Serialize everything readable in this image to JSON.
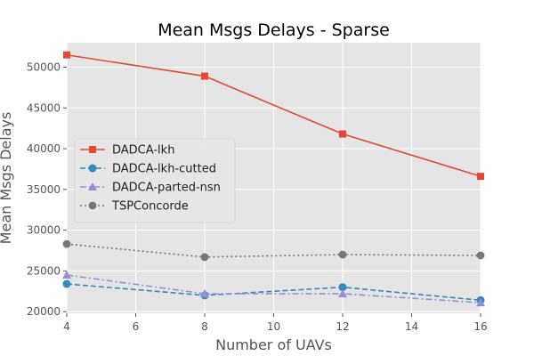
{
  "chart_data": {
    "type": "line",
    "title": "Mean Msgs Delays - Sparse",
    "xlabel": "Number of UAVs",
    "ylabel": "Mean Msgs Delays",
    "x": [
      4,
      8,
      12,
      16
    ],
    "xlim": [
      4,
      16
    ],
    "ylim": [
      19800,
      53000
    ],
    "xticks": [
      4,
      6,
      8,
      10,
      12,
      14,
      16
    ],
    "yticks": [
      20000,
      25000,
      30000,
      35000,
      40000,
      45000,
      50000
    ],
    "grid": true,
    "legend_position": "center-left",
    "series": [
      {
        "name": "DADCA-lkh",
        "values": [
          51500,
          48900,
          41800,
          36600
        ],
        "color": "#E24A33",
        "marker": "square",
        "linestyle": "solid"
      },
      {
        "name": "DADCA-lkh-cutted",
        "values": [
          23400,
          22000,
          23000,
          21400
        ],
        "color": "#348ABD",
        "marker": "circle",
        "linestyle": "dashed"
      },
      {
        "name": "DADCA-parted-nsn",
        "values": [
          24500,
          22200,
          22200,
          21100
        ],
        "color": "#988ED5",
        "marker": "triangle",
        "linestyle": "dashdot"
      },
      {
        "name": "TSPConcorde",
        "values": [
          28300,
          26700,
          27000,
          26900
        ],
        "color": "#777777",
        "marker": "octagon",
        "linestyle": "dotted"
      }
    ]
  }
}
